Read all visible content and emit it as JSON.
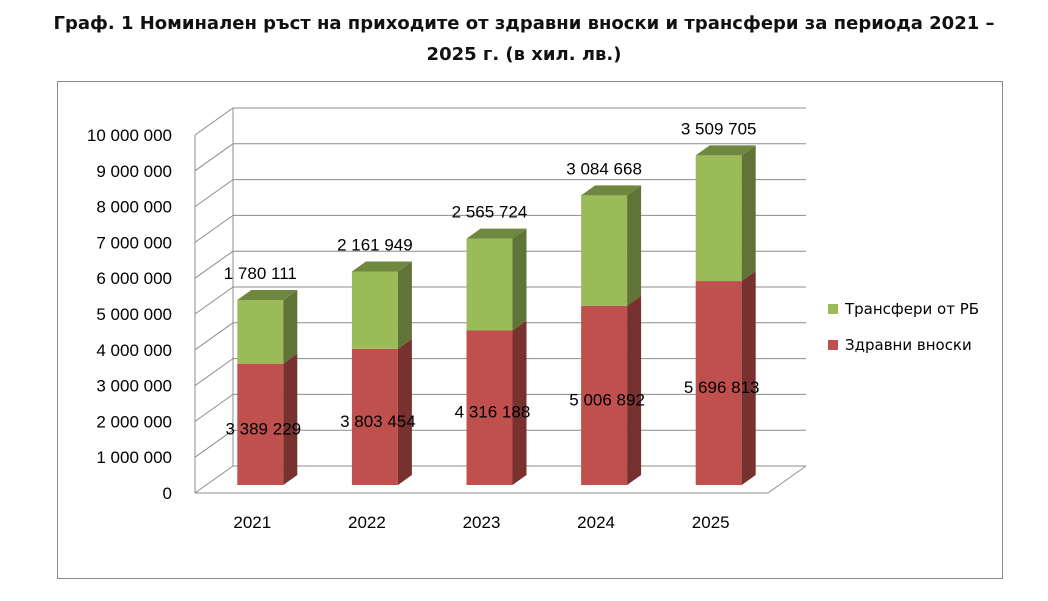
{
  "title_line1": "Граф. 1 Номинален ръст на приходите от здравни вноски и трансфери за периода 2021 –",
  "title_line2": "2025 г. (в хил. лв.)",
  "chart_data": {
    "type": "bar",
    "stacked": true,
    "three_d": true,
    "categories": [
      "2021",
      "2022",
      "2023",
      "2024",
      "2025"
    ],
    "series": [
      {
        "name": "Здравни вноски",
        "values": [
          3389229,
          3803454,
          4316188,
          5006892,
          5696813
        ],
        "labels": [
          "3 389 229",
          "3 803 454",
          "4 316 188",
          "5 006 892",
          "5 696 813"
        ],
        "color": "#c0504d"
      },
      {
        "name": "Трансфери от РБ",
        "values": [
          1780111,
          2161949,
          2565724,
          3084668,
          3509705
        ],
        "labels": [
          "1 780 111",
          "2 161 949",
          "2 565 724",
          "3 084 668",
          "3 509 705"
        ],
        "color": "#9bbb59"
      }
    ],
    "yticks": [
      "0",
      "1 000 000",
      "2 000 000",
      "3 000 000",
      "4 000 000",
      "5 000 000",
      "6 000 000",
      "7 000 000",
      "8 000 000",
      "9 000 000",
      "10 000 000"
    ],
    "ylim": [
      0,
      10000000
    ],
    "grid": true,
    "legend_position": "right"
  }
}
